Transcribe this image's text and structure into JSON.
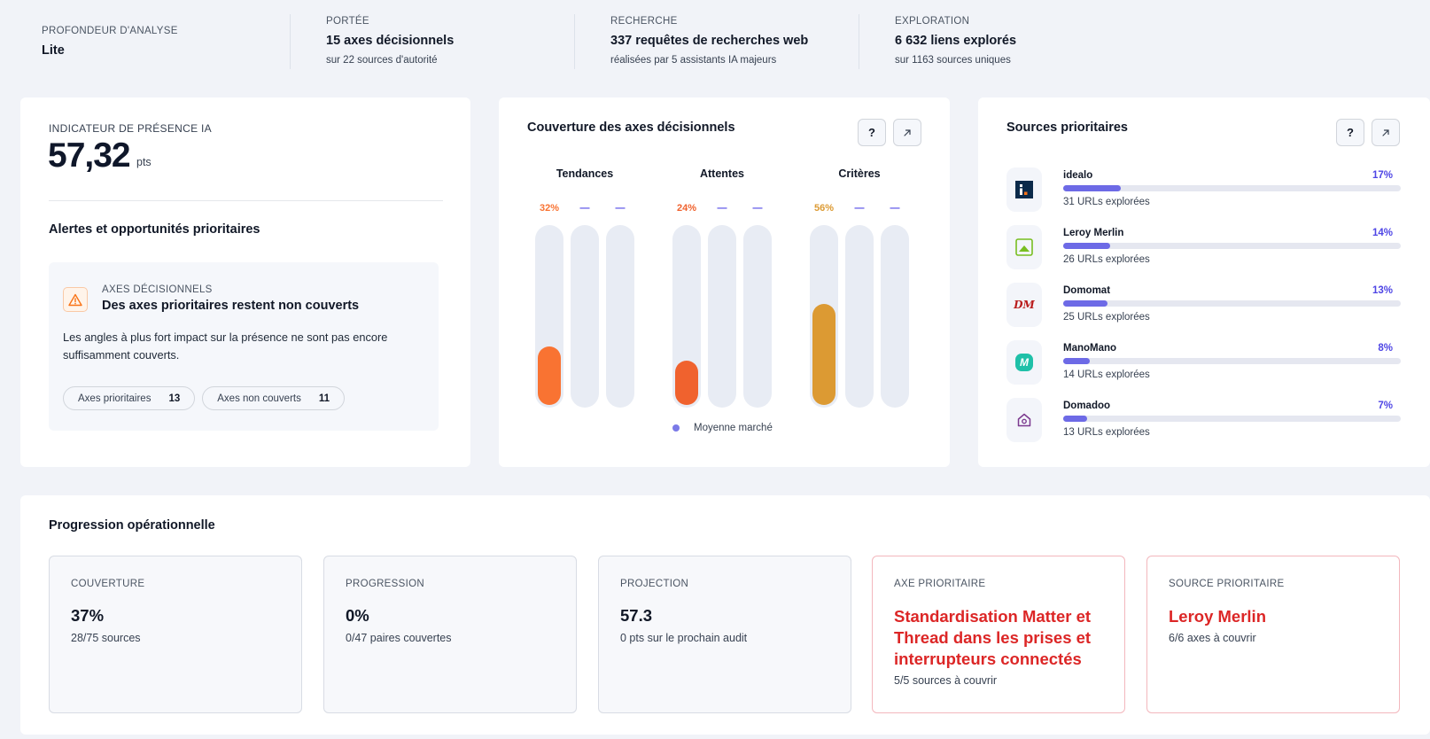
{
  "stats": [
    {
      "label": "PROFONDEUR D'ANALYSE",
      "value": "Lite",
      "sub": ""
    },
    {
      "label": "PORTÉE",
      "value": "15 axes décisionnels",
      "sub": "sur 22 sources d'autorité"
    },
    {
      "label": "RECHERCHE",
      "value": "337 requêtes de recherches web",
      "sub": "réalisées par 5 assistants IA majeurs"
    },
    {
      "label": "EXPLORATION",
      "value": "6 632 liens explorés",
      "sub": "sur 1163 sources uniques"
    }
  ],
  "presence": {
    "label": "INDICATEUR DE PRÉSENCE IA",
    "value": "57,32",
    "unit": "pts",
    "alerts_title": "Alertes et opportunités prioritaires",
    "alert": {
      "kicker": "AXES DÉCISIONNELS",
      "title": "Des axes prioritaires restent non couverts",
      "text": "Les angles à plus fort impact sur la présence ne sont pas encore suffisamment couverts.",
      "pills": [
        {
          "label": "Axes prioritaires",
          "count": "13"
        },
        {
          "label": "Axes non couverts",
          "count": "11"
        }
      ]
    }
  },
  "coverage": {
    "title": "Couverture des axes décisionnels",
    "help_label": "?",
    "legend": "Moyenne marché",
    "groups": [
      {
        "title": "Tendances",
        "bars": [
          {
            "label": "32%",
            "value": 32,
            "color": "#f97332"
          },
          {
            "label": "—",
            "value": null
          },
          {
            "label": "—",
            "value": null
          }
        ]
      },
      {
        "title": "Attentes",
        "bars": [
          {
            "label": "24%",
            "value": 24,
            "color": "#f0622e"
          },
          {
            "label": "—",
            "value": null
          },
          {
            "label": "—",
            "value": null
          }
        ]
      },
      {
        "title": "Critères",
        "bars": [
          {
            "label": "56%",
            "value": 56,
            "color": "#dc9a33"
          },
          {
            "label": "—",
            "value": null
          },
          {
            "label": "—",
            "value": null
          }
        ]
      }
    ],
    "dash_color": "#4f46e5"
  },
  "sources": {
    "title": "Sources prioritaires",
    "help_label": "?",
    "items": [
      {
        "name": "idealo",
        "pct": "17%",
        "fraction": 0.17,
        "urls": "31 URLs explorées",
        "icon": "idealo-logo-icon"
      },
      {
        "name": "Leroy Merlin",
        "pct": "14%",
        "fraction": 0.14,
        "urls": "26 URLs explorées",
        "icon": "leroy-merlin-logo-icon"
      },
      {
        "name": "Domomat",
        "pct": "13%",
        "fraction": 0.13,
        "urls": "25 URLs explorées",
        "icon": "domomat-logo-icon",
        "logo_text": "DM"
      },
      {
        "name": "ManoMano",
        "pct": "8%",
        "fraction": 0.08,
        "urls": "14 URLs explorées",
        "icon": "manomano-logo-icon",
        "logo_text": "M"
      },
      {
        "name": "Domadoo",
        "pct": "7%",
        "fraction": 0.07,
        "urls": "13 URLs explorées",
        "icon": "domadoo-logo-icon"
      }
    ]
  },
  "progress": {
    "title": "Progression opérationnelle",
    "kpis": [
      {
        "label": "COUVERTURE",
        "value": "37%",
        "sub": "28/75 sources"
      },
      {
        "label": "PROGRESSION",
        "value": "0%",
        "sub": "0/47 paires couvertes"
      },
      {
        "label": "PROJECTION",
        "value": "57.3",
        "sub": "0 pts sur le prochain audit"
      },
      {
        "label": "AXE PRIORITAIRE",
        "value": "Standardisation Matter et Thread dans les prises et interrupteurs connectés",
        "sub": "5/5 sources à couvrir"
      },
      {
        "label": "SOURCE PRIORITAIRE",
        "value": "Leroy Merlin",
        "sub": "6/6 axes à couvrir"
      }
    ]
  },
  "colors": {
    "accent": "#4f46e5",
    "alert_red": "#dc2626"
  }
}
